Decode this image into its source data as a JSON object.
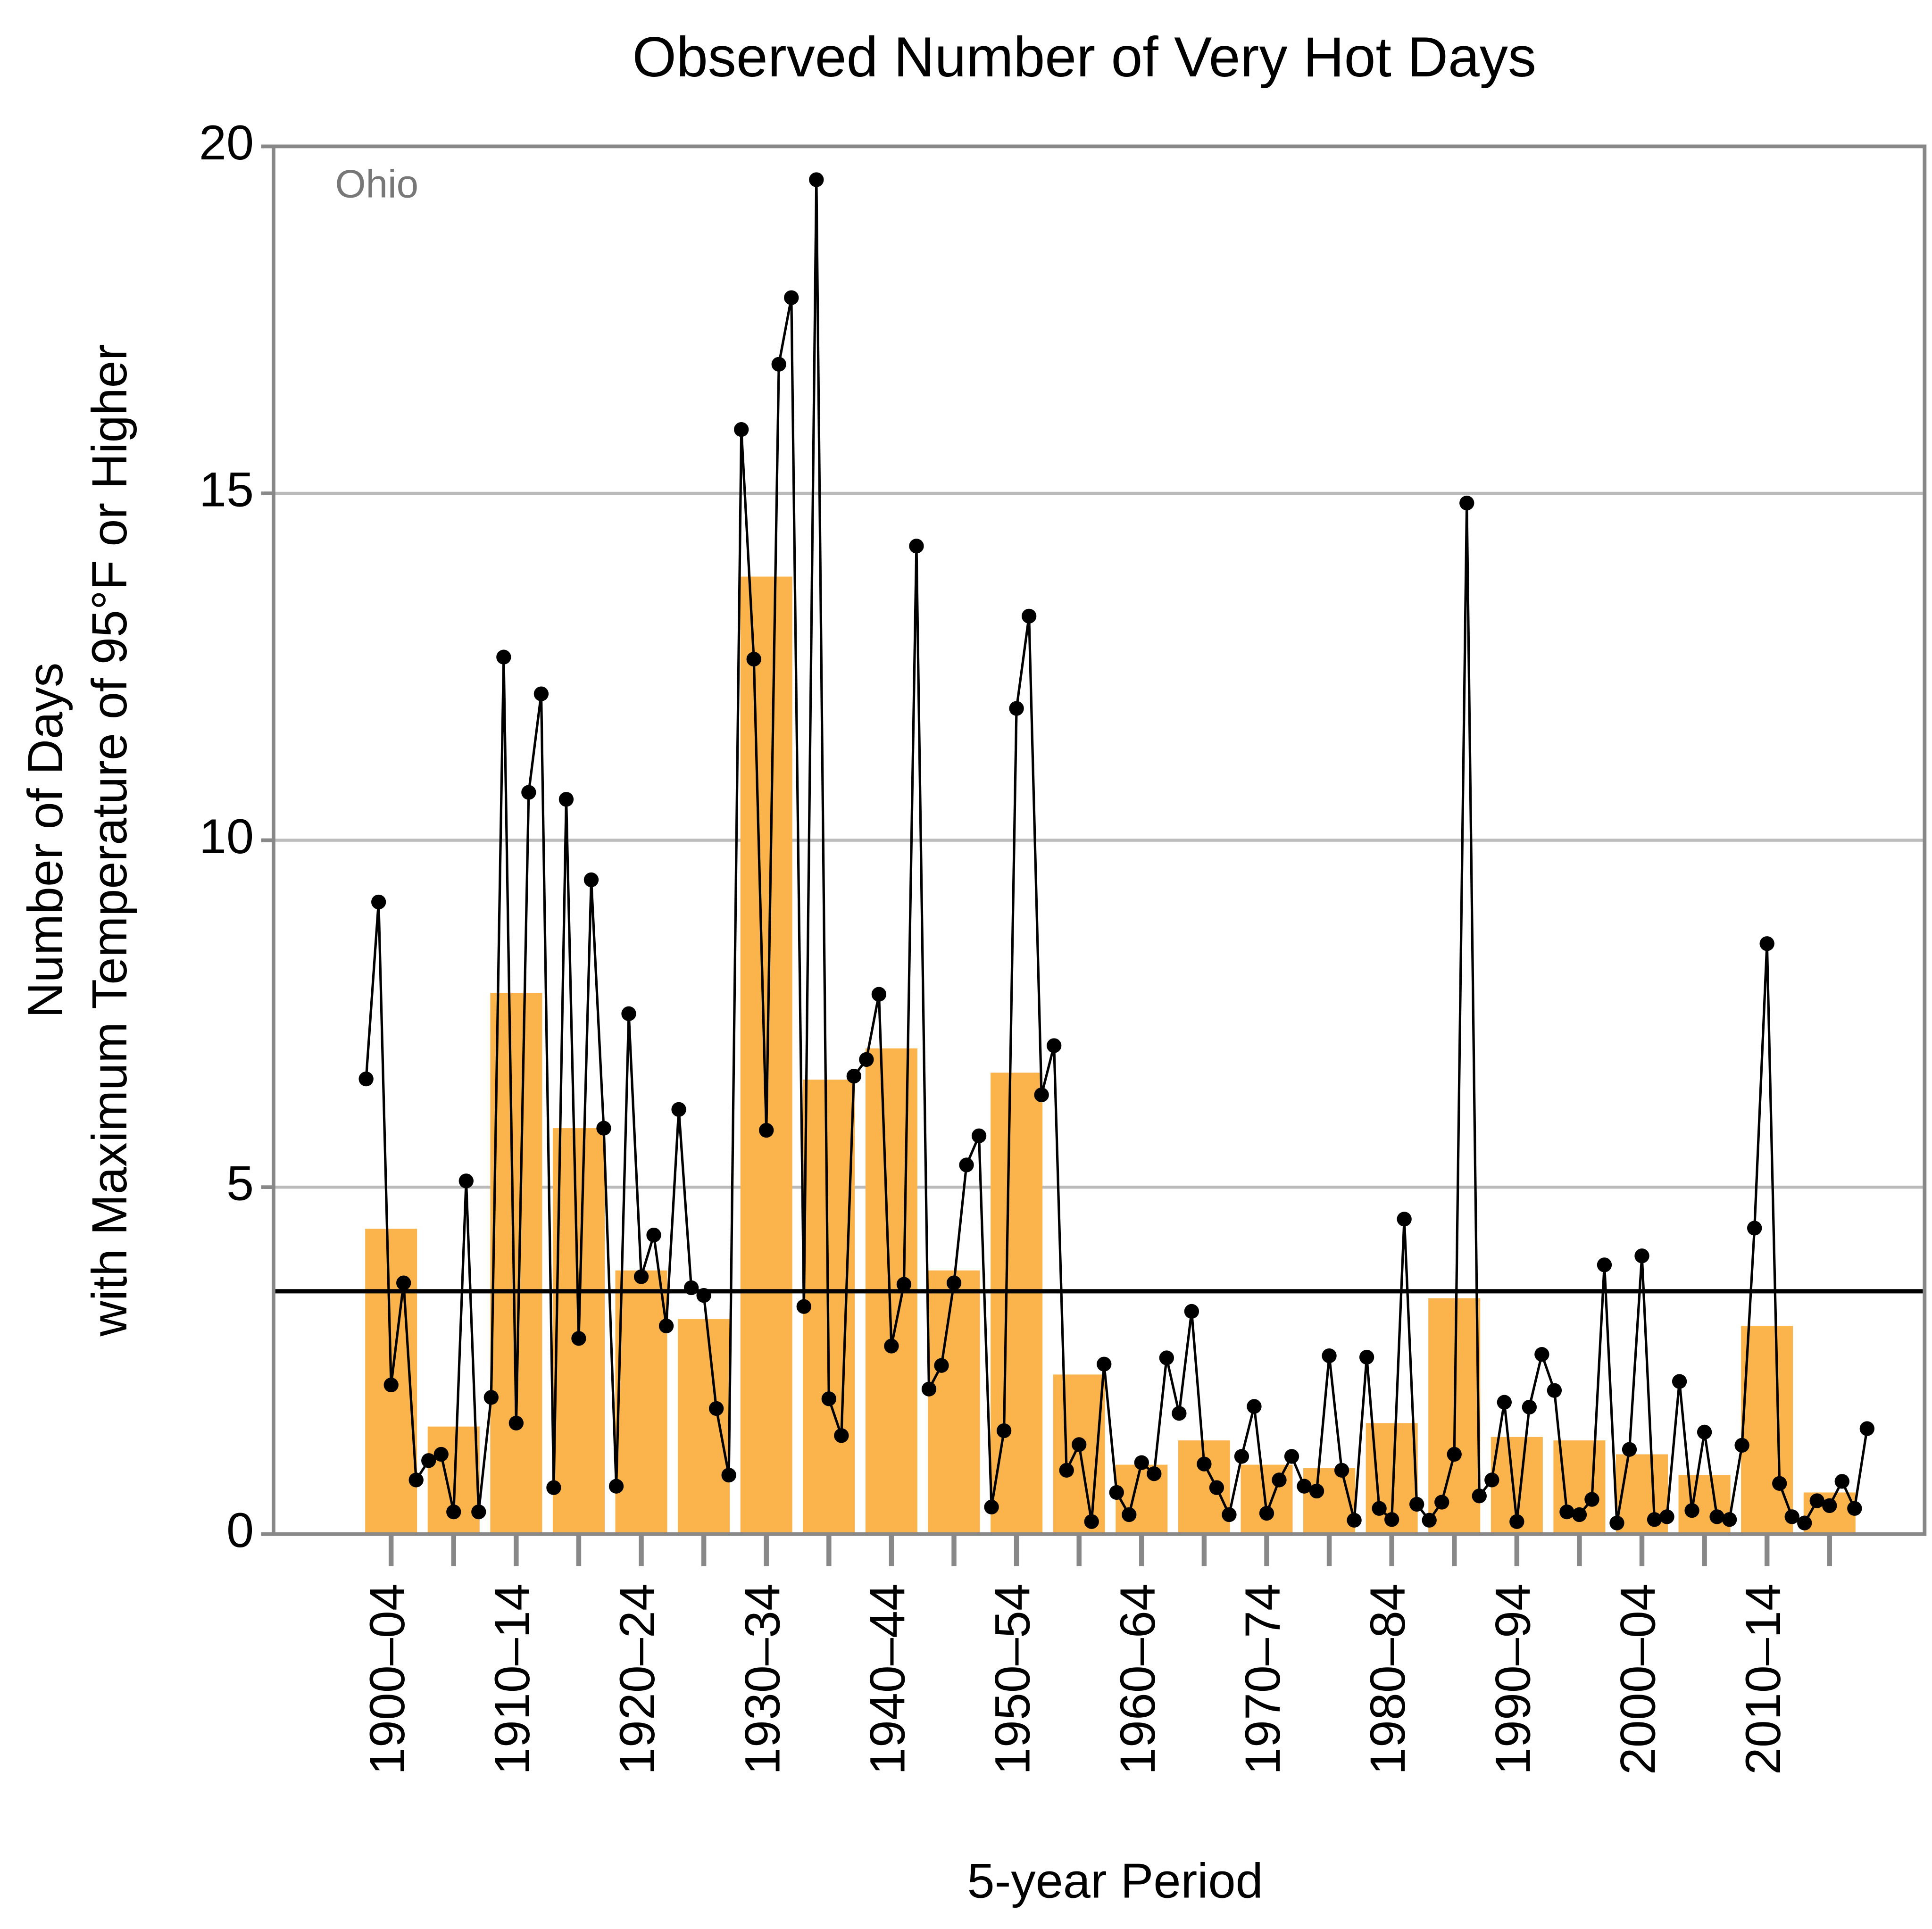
{
  "chart_data": {
    "type": "bar",
    "title": "Observed Number of Very Hot Days",
    "annotation": "Ohio",
    "x_label": "5-year Period",
    "y_label": [
      "Number of Days",
      "with Maximum Temperature of 95°F or Higher"
    ],
    "categories": [
      "1900–04",
      null,
      "1910–14",
      null,
      "1920–24",
      null,
      "1930–34",
      null,
      "1940–44",
      null,
      "1950–54",
      null,
      "1960–64",
      null,
      "1970–74",
      null,
      "1980–84",
      null,
      "1990–94",
      null,
      "2000–04",
      null,
      "2010–14",
      null
    ],
    "values": [
      4.4,
      1.55,
      7.8,
      5.85,
      3.8,
      3.1,
      13.8,
      6.55,
      7.0,
      3.8,
      6.65,
      2.3,
      1.0,
      1.35,
      1.0,
      0.95,
      1.6,
      3.4,
      1.4,
      1.35,
      1.15,
      0.85,
      3.0,
      0.6
    ],
    "color": "#fbb44c",
    "line": {
      "type": "line",
      "color": "#000000",
      "x": [
        1900,
        1901,
        1902,
        1903,
        1904,
        1905,
        1906,
        1907,
        1908,
        1909,
        1910,
        1911,
        1912,
        1913,
        1914,
        1915,
        1916,
        1917,
        1918,
        1919,
        1920,
        1921,
        1922,
        1923,
        1924,
        1925,
        1926,
        1927,
        1928,
        1929,
        1930,
        1931,
        1932,
        1933,
        1934,
        1935,
        1936,
        1937,
        1938,
        1939,
        1940,
        1941,
        1942,
        1943,
        1944,
        1945,
        1946,
        1947,
        1948,
        1949,
        1950,
        1951,
        1952,
        1953,
        1954,
        1955,
        1956,
        1957,
        1958,
        1959,
        1960,
        1961,
        1962,
        1963,
        1964,
        1965,
        1966,
        1967,
        1968,
        1969,
        1970,
        1971,
        1972,
        1973,
        1974,
        1975,
        1976,
        1977,
        1978,
        1979,
        1980,
        1981,
        1982,
        1983,
        1984,
        1985,
        1986,
        1987,
        1988,
        1989,
        1990,
        1991,
        1992,
        1993,
        1994,
        1995,
        1996,
        1997,
        1998,
        1999,
        2000,
        2001,
        2002,
        2003,
        2004,
        2005,
        2006,
        2007,
        2008,
        2009,
        2010,
        2011,
        2012,
        2013,
        2014,
        2015,
        2016,
        2017,
        2018,
        2019,
        2020
      ],
      "values": [
        6.56,
        9.11,
        2.15,
        3.62,
        0.78,
        1.06,
        1.15,
        0.32,
        5.09,
        0.32,
        1.97,
        12.64,
        1.6,
        10.69,
        12.11,
        0.67,
        10.59,
        2.82,
        9.43,
        5.85,
        0.69,
        7.5,
        3.71,
        4.31,
        3.0,
        6.12,
        3.55,
        3.44,
        1.81,
        0.85,
        15.92,
        12.61,
        5.82,
        16.86,
        17.82,
        3.28,
        19.52,
        1.95,
        1.42,
        6.6,
        6.84,
        7.78,
        2.71,
        3.6,
        14.24,
        2.09,
        2.43,
        3.62,
        5.32,
        5.74,
        0.39,
        1.49,
        11.9,
        13.23,
        6.33,
        7.04,
        0.92,
        1.29,
        0.18,
        2.45,
        0.6,
        0.28,
        1.03,
        0.87,
        2.54,
        1.74,
        3.21,
        1.01,
        0.67,
        0.28,
        1.12,
        1.84,
        0.3,
        0.78,
        1.12,
        0.69,
        0.62,
        2.57,
        0.92,
        0.2,
        2.55,
        0.37,
        0.21,
        4.54,
        0.43,
        0.2,
        0.46,
        1.15,
        14.86,
        0.55,
        0.78,
        1.9,
        0.18,
        1.83,
        2.59,
        2.07,
        0.32,
        0.28,
        0.5,
        3.88,
        0.16,
        1.22,
        4.01,
        0.21,
        0.25,
        2.2,
        0.34,
        1.47,
        0.25,
        0.21,
        1.28,
        4.41,
        8.51,
        0.73,
        0.25,
        0.16,
        0.48,
        0.41,
        0.76,
        0.37,
        1.52
      ]
    },
    "reference_line": 3.5,
    "xlim": [
      1892.6,
      2024.6
    ],
    "ylim": [
      0,
      20
    ],
    "yticks": [
      0,
      5,
      10,
      15,
      20
    ],
    "grid": true
  }
}
